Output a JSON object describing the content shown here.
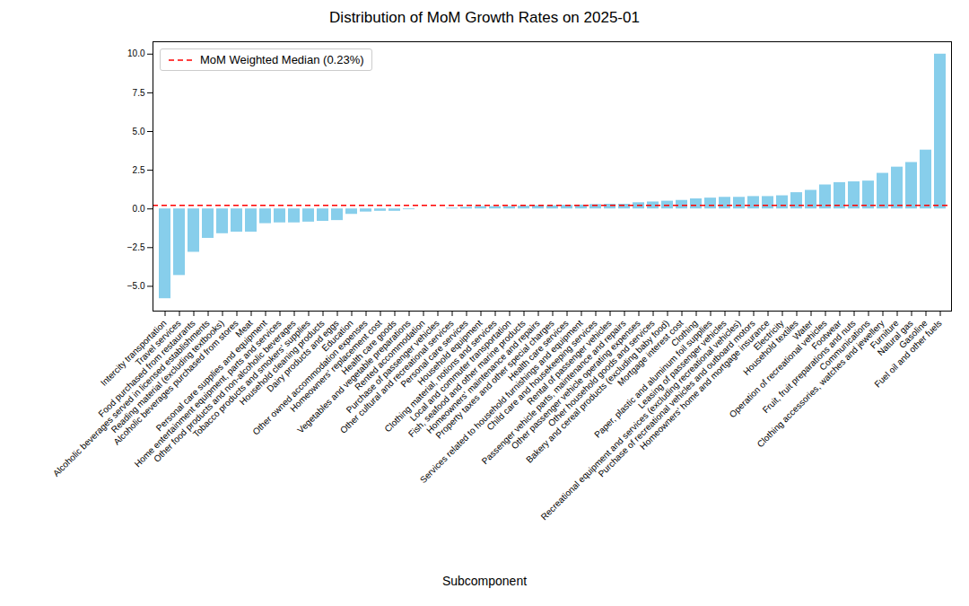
{
  "chart_data": {
    "type": "bar",
    "title": "Distribution of MoM Growth Rates on 2025-01",
    "x_label": "Subcomponent",
    "categories": [
      "Intercity transportation",
      "Travel services",
      "Food purchased from restaurants",
      "Alcoholic beverages served in licensed establishments",
      "Reading material (excluding textbooks)",
      "Alcoholic beverages purchased from stores",
      "Meat",
      "Personal care supplies and equipment",
      "Home entertainment equipment, parts and services",
      "Other food products and non-alcoholic beverages",
      "Tobacco products and smokers' supplies",
      "Household cleaning products",
      "Dairy products and eggs",
      "Education",
      "Other owned accommodation expenses",
      "Homeowners' replacement cost",
      "Health care goods",
      "Vegetables and vegetable preparations",
      "Rented accommodation",
      "Purchase of passenger vehicles",
      "Other cultural and recreational services",
      "Personal care services",
      "Household equipment",
      "Clothing material, notions and services",
      "Local and commuter transportation",
      "Fish, seafood and other marine products",
      "Homeowners' maintenance and repairs",
      "Property taxes and other special charges",
      "Health care services",
      "Services related to household furnishings and equipment",
      "Child care and housekeeping services",
      "Rental of passenger vehicles",
      "Passenger vehicle parts, maintenance and repairs",
      "Other passenger vehicle operating expenses",
      "Other household goods and services",
      "Bakery and cereal products (excluding baby food)",
      "Mortgage interest cost",
      "Clothing",
      "Paper, plastic and aluminum foil supplies",
      "Leasing of passenger vehicles",
      "Recreational equipment and services (excluding recreational vehicles)",
      "Purchase of recreational vehicles and outboard motors",
      "Homeowners' home and mortgage insurance",
      "Electricity",
      "Household textiles",
      "Water",
      "Operation of recreational vehicles",
      "Footwear",
      "Fruit, fruit preparations and nuts",
      "Communications",
      "Clothing accessories, watches and jewellery",
      "Furniture",
      "Natural gas",
      "Gasoline",
      "Fuel oil and other fuels"
    ],
    "values": [
      -5.8,
      -4.3,
      -2.8,
      -1.9,
      -1.6,
      -1.5,
      -1.5,
      -0.95,
      -0.9,
      -0.9,
      -0.85,
      -0.8,
      -0.75,
      -0.35,
      -0.2,
      -0.15,
      -0.15,
      -0.05,
      0.0,
      0.0,
      0.05,
      0.1,
      0.15,
      0.15,
      0.15,
      0.18,
      0.2,
      0.2,
      0.23,
      0.25,
      0.28,
      0.3,
      0.3,
      0.4,
      0.45,
      0.5,
      0.55,
      0.65,
      0.7,
      0.75,
      0.75,
      0.8,
      0.8,
      0.85,
      1.05,
      1.2,
      1.55,
      1.7,
      1.75,
      1.8,
      2.3,
      2.7,
      3.0,
      3.8,
      10.0
    ],
    "color": "#87ceeb",
    "ylim": [
      -6.6,
      10.8
    ],
    "yticks": [
      {
        "value": -5,
        "label": "−5.0"
      },
      {
        "value": -2.5,
        "label": "−2.5"
      },
      {
        "value": 0,
        "label": "0.0"
      },
      {
        "value": 2.5,
        "label": "2.5"
      },
      {
        "value": 5,
        "label": "5.0"
      },
      {
        "value": 7.5,
        "label": "7.5"
      },
      {
        "value": 10,
        "label": "10.0"
      }
    ],
    "median": {
      "value": 0.23,
      "label": "MoM Weighted Median (0.23%)",
      "color": "#ff0000",
      "line_style": "dashed"
    },
    "legend": "upper left",
    "grid": false
  }
}
